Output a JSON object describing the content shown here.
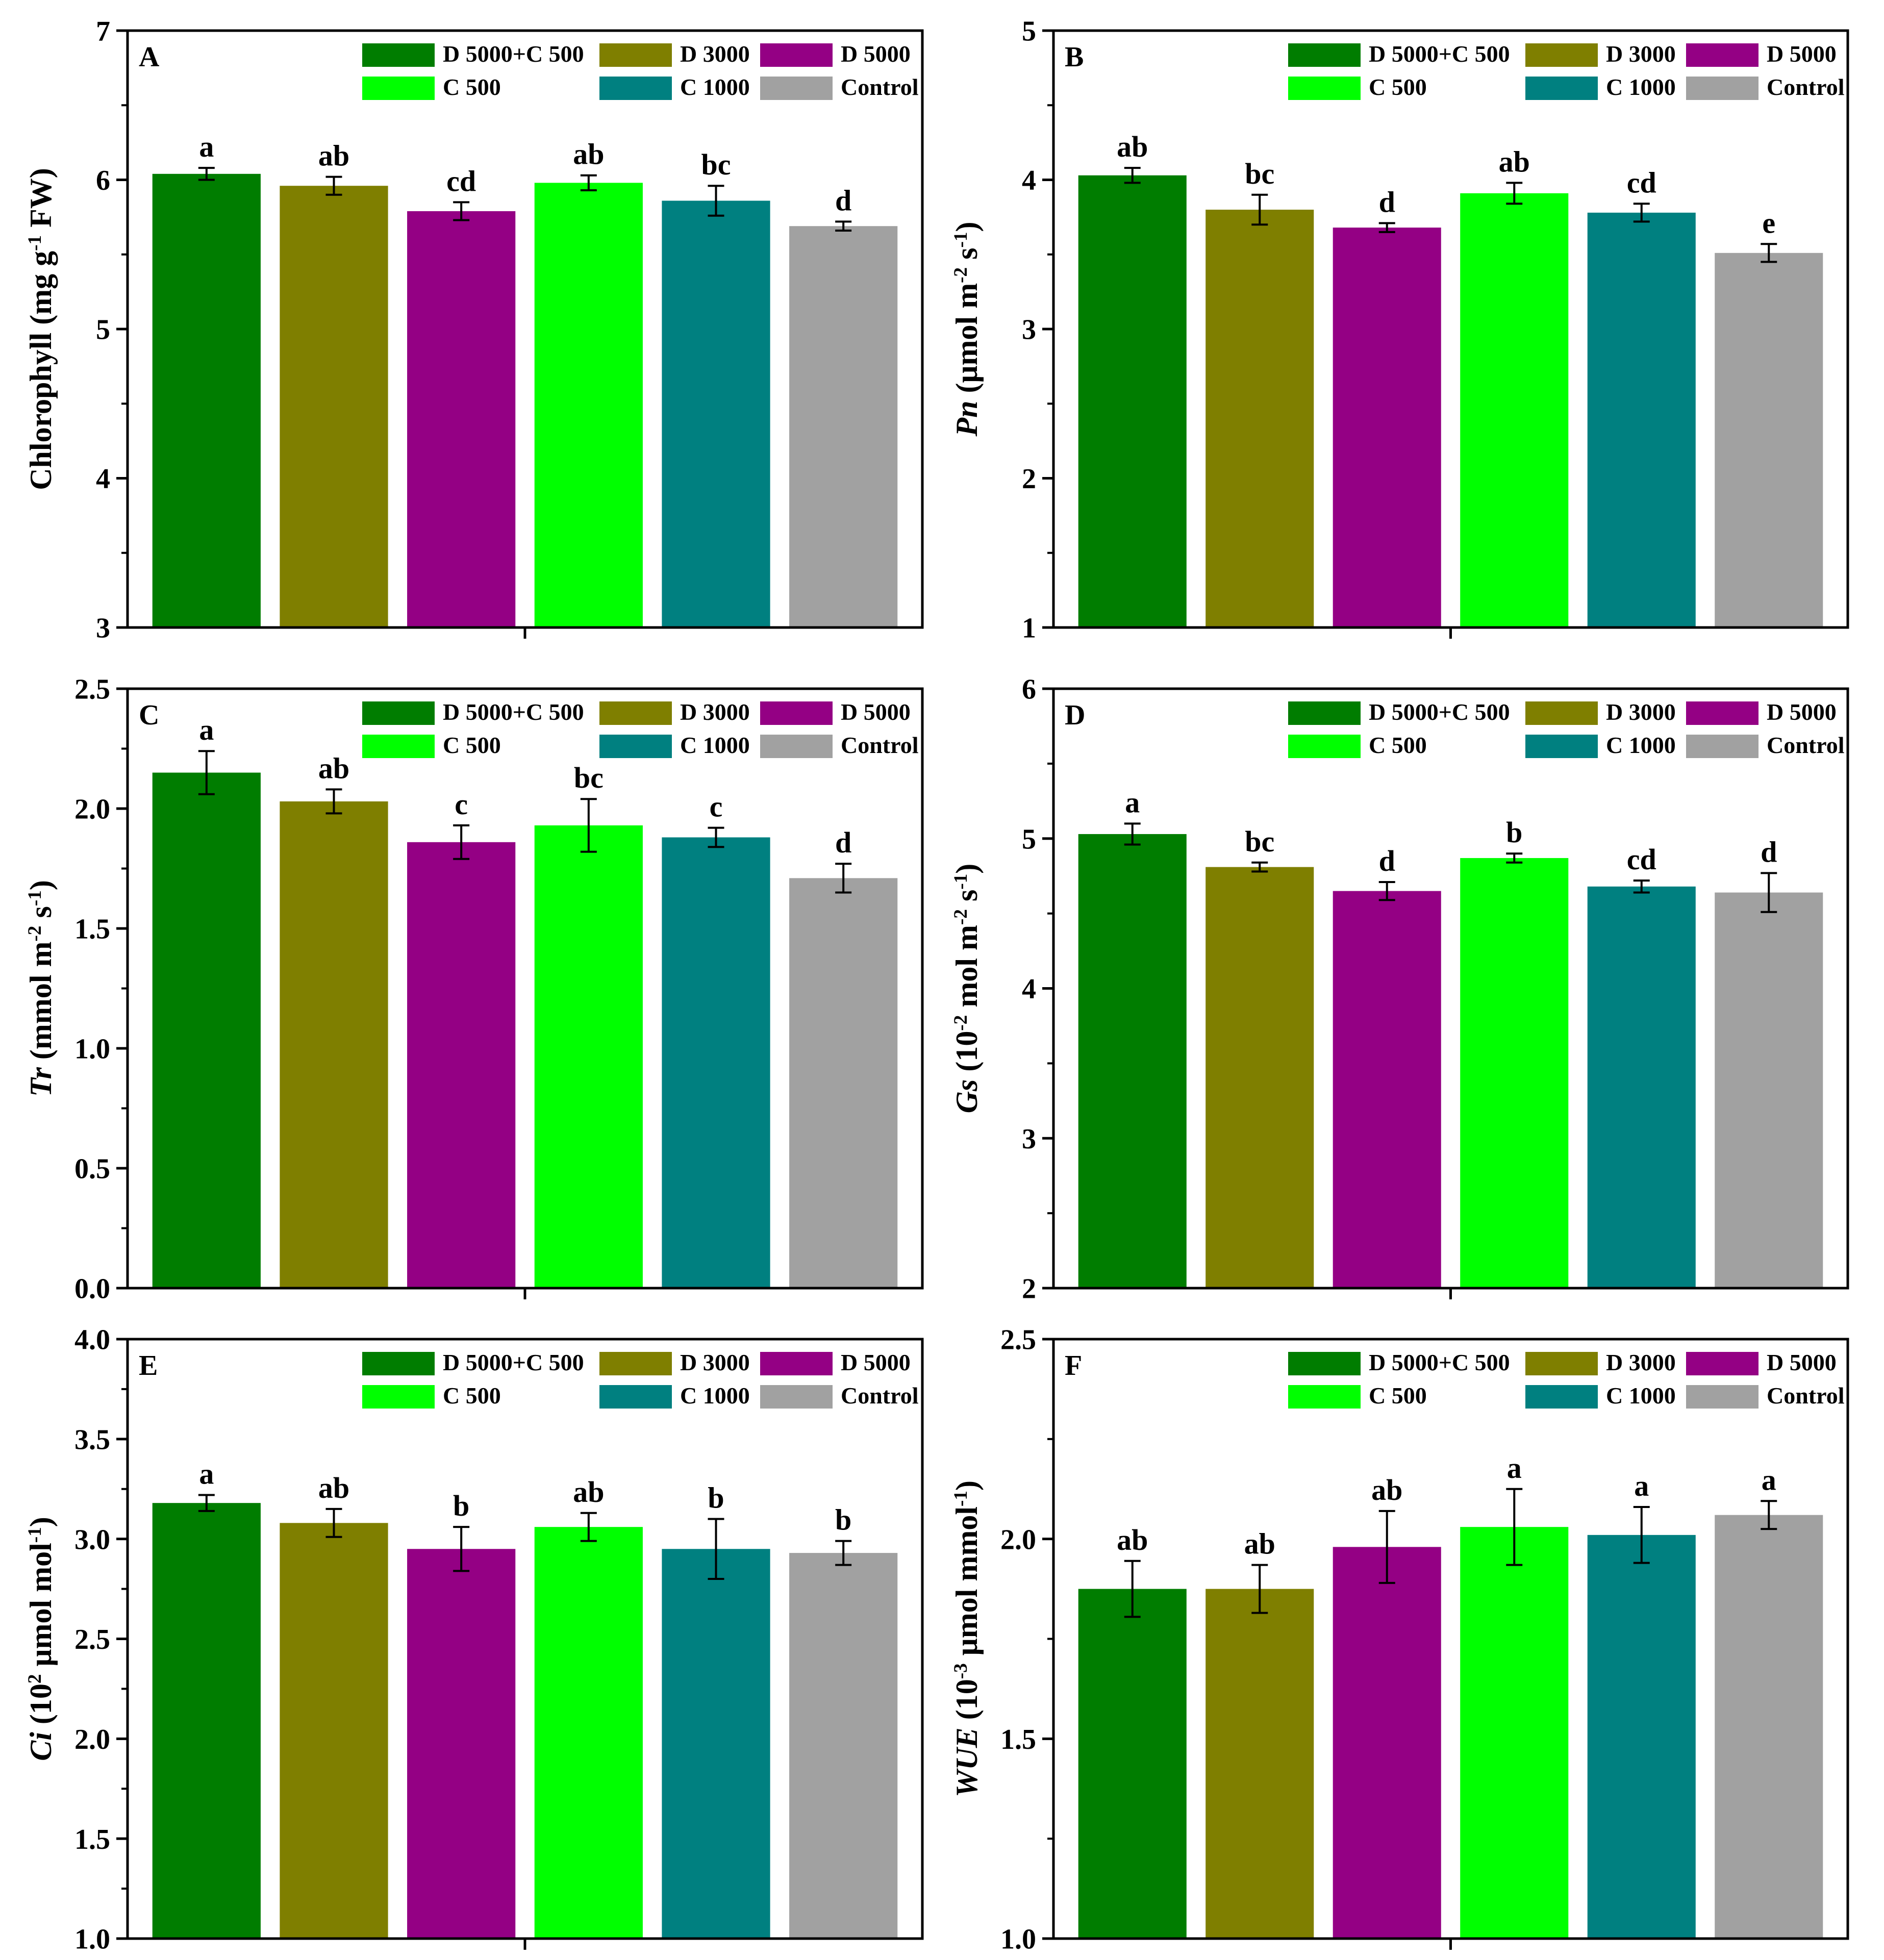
{
  "colors": {
    "D 5000+C 500": "#007d00",
    "D 3000": "#7f7f00",
    "D 5000": "#940084",
    "C 500": "#00ff00",
    "C 1000": "#008080",
    "Control": "#a1a1a1"
  },
  "chart_data": [
    {
      "panel": "A",
      "type": "bar",
      "ylabel_parts": [
        {
          "t": "Chlorophyll (mg g"
        },
        {
          "t": "-1",
          "sup": true
        },
        {
          "t": " FW)"
        }
      ],
      "ylim": [
        3,
        7
      ],
      "yticks": [
        3,
        4,
        5,
        6,
        7
      ],
      "ytick_labels": [
        "3",
        "4",
        "5",
        "6",
        "7"
      ],
      "legend": [
        "D 5000+C 500",
        "D 3000",
        "D 5000",
        "C 500",
        "C 1000",
        "Control"
      ],
      "categories": [
        "D 5000+C 500",
        "D 3000",
        "D 5000",
        "C 500",
        "C 1000",
        "Control"
      ],
      "values": [
        6.04,
        5.96,
        5.79,
        5.98,
        5.86,
        5.69
      ],
      "errors": [
        0.04,
        0.06,
        0.06,
        0.05,
        0.1,
        0.03
      ],
      "letters": [
        "a",
        "ab",
        "cd",
        "ab",
        "bc",
        "d"
      ]
    },
    {
      "panel": "B",
      "type": "bar",
      "ylabel_parts": [
        {
          "t": "Pn",
          "italic": true
        },
        {
          "t": " (μmol m"
        },
        {
          "t": "-2",
          "sup": true
        },
        {
          "t": " s"
        },
        {
          "t": "-1",
          "sup": true
        },
        {
          "t": ")"
        }
      ],
      "ylim": [
        1,
        5
      ],
      "yticks": [
        1,
        2,
        3,
        4,
        5
      ],
      "ytick_labels": [
        "1",
        "2",
        "3",
        "4",
        "5"
      ],
      "legend": [
        "D 5000+C 500",
        "D 3000",
        "D 5000",
        "C 500",
        "C 1000",
        "Control"
      ],
      "categories": [
        "D 5000+C 500",
        "D 3000",
        "D 5000",
        "C 500",
        "C 1000",
        "Control"
      ],
      "values": [
        4.03,
        3.8,
        3.68,
        3.91,
        3.78,
        3.51
      ],
      "errors": [
        0.05,
        0.1,
        0.03,
        0.07,
        0.06,
        0.06
      ],
      "letters": [
        "ab",
        "bc",
        "d",
        "ab",
        "cd",
        "e"
      ]
    },
    {
      "panel": "C",
      "type": "bar",
      "ylabel_parts": [
        {
          "t": "Tr",
          "italic": true
        },
        {
          "t": " (mmol m"
        },
        {
          "t": "-2",
          "sup": true
        },
        {
          "t": " s"
        },
        {
          "t": "-1",
          "sup": true
        },
        {
          "t": ")"
        }
      ],
      "ylim": [
        0,
        2.5
      ],
      "yticks": [
        0,
        0.5,
        1,
        1.5,
        2,
        2.5
      ],
      "ytick_labels": [
        "0.0",
        "0.5",
        "1.0",
        "1.5",
        "2.0",
        "2.5"
      ],
      "legend": [
        "D 5000+C 500",
        "D 3000",
        "D 5000",
        "C 500",
        "C 1000",
        "Control"
      ],
      "categories": [
        "D 5000+C 500",
        "D 3000",
        "D 5000",
        "C 500",
        "C 1000",
        "Control"
      ],
      "values": [
        2.15,
        2.03,
        1.86,
        1.93,
        1.88,
        1.71
      ],
      "errors": [
        0.09,
        0.05,
        0.07,
        0.11,
        0.04,
        0.06
      ],
      "letters": [
        "a",
        "ab",
        "c",
        "bc",
        "c",
        "d"
      ]
    },
    {
      "panel": "D",
      "type": "bar",
      "ylabel_parts": [
        {
          "t": "Gs",
          "italic": true
        },
        {
          "t": " (10"
        },
        {
          "t": "-2",
          "sup": true
        },
        {
          "t": " mol m"
        },
        {
          "t": "-2",
          "sup": true
        },
        {
          "t": " s"
        },
        {
          "t": "-1",
          "sup": true
        },
        {
          "t": ")"
        }
      ],
      "ylim": [
        2,
        6
      ],
      "yticks": [
        2,
        3,
        4,
        5,
        6
      ],
      "ytick_labels": [
        "2",
        "3",
        "4",
        "5",
        "6"
      ],
      "legend": [
        "D 5000+C 500",
        "D 3000",
        "D 5000",
        "C 500",
        "C 1000",
        "Control"
      ],
      "categories": [
        "D 5000+C 500",
        "D 3000",
        "D 5000",
        "C 500",
        "C 1000",
        "Control"
      ],
      "values": [
        5.03,
        4.81,
        4.65,
        4.87,
        4.68,
        4.64
      ],
      "errors": [
        0.07,
        0.03,
        0.06,
        0.03,
        0.04,
        0.13
      ],
      "letters": [
        "a",
        "bc",
        "d",
        "b",
        "cd",
        "d"
      ]
    },
    {
      "panel": "E",
      "type": "bar",
      "ylabel_parts": [
        {
          "t": "Ci",
          "italic": true
        },
        {
          "t": " (10"
        },
        {
          "t": "2",
          "sup": true
        },
        {
          "t": " μmol mol"
        },
        {
          "t": "-1",
          "sup": true
        },
        {
          "t": ")"
        }
      ],
      "ylim": [
        1,
        4
      ],
      "yticks": [
        1,
        1.5,
        2,
        2.5,
        3,
        3.5,
        4
      ],
      "ytick_labels": [
        "1.0",
        "1.5",
        "2.0",
        "2.5",
        "3.0",
        "3.5",
        "4.0"
      ],
      "legend": [
        "D 5000+C 500",
        "D 3000",
        "D 5000",
        "C 500",
        "C 1000",
        "Control"
      ],
      "categories": [
        "D 5000+C 500",
        "D 3000",
        "D 5000",
        "C 500",
        "C 1000",
        "Control"
      ],
      "values": [
        3.18,
        3.08,
        2.95,
        3.06,
        2.95,
        2.93
      ],
      "errors": [
        0.04,
        0.07,
        0.11,
        0.07,
        0.15,
        0.06
      ],
      "letters": [
        "a",
        "ab",
        "b",
        "ab",
        "b",
        "b"
      ]
    },
    {
      "panel": "F",
      "type": "bar",
      "ylabel_parts": [
        {
          "t": "WUE",
          "italic": true
        },
        {
          "t": " (10"
        },
        {
          "t": "-3",
          "sup": true
        },
        {
          "t": " μmol mmol"
        },
        {
          "t": "-1",
          "sup": true
        },
        {
          "t": ")"
        }
      ],
      "ylim": [
        1,
        2.5
      ],
      "yticks": [
        1,
        1.5,
        2,
        2.5
      ],
      "ytick_labels": [
        "1.0",
        "1.5",
        "2.0",
        "2.5"
      ],
      "legend": [
        "D 5000+C 500",
        "D 3000",
        "D 5000",
        "C 500",
        "C 1000",
        "Control"
      ],
      "categories": [
        "D 5000+C 500",
        "D 3000",
        "D 5000",
        "C 500",
        "C 1000",
        "Control"
      ],
      "values": [
        1.875,
        1.875,
        1.98,
        2.03,
        2.01,
        2.06
      ],
      "errors": [
        0.07,
        0.06,
        0.09,
        0.095,
        0.07,
        0.035
      ],
      "letters": [
        "ab",
        "ab",
        "ab",
        "a",
        "a",
        "a"
      ]
    }
  ]
}
